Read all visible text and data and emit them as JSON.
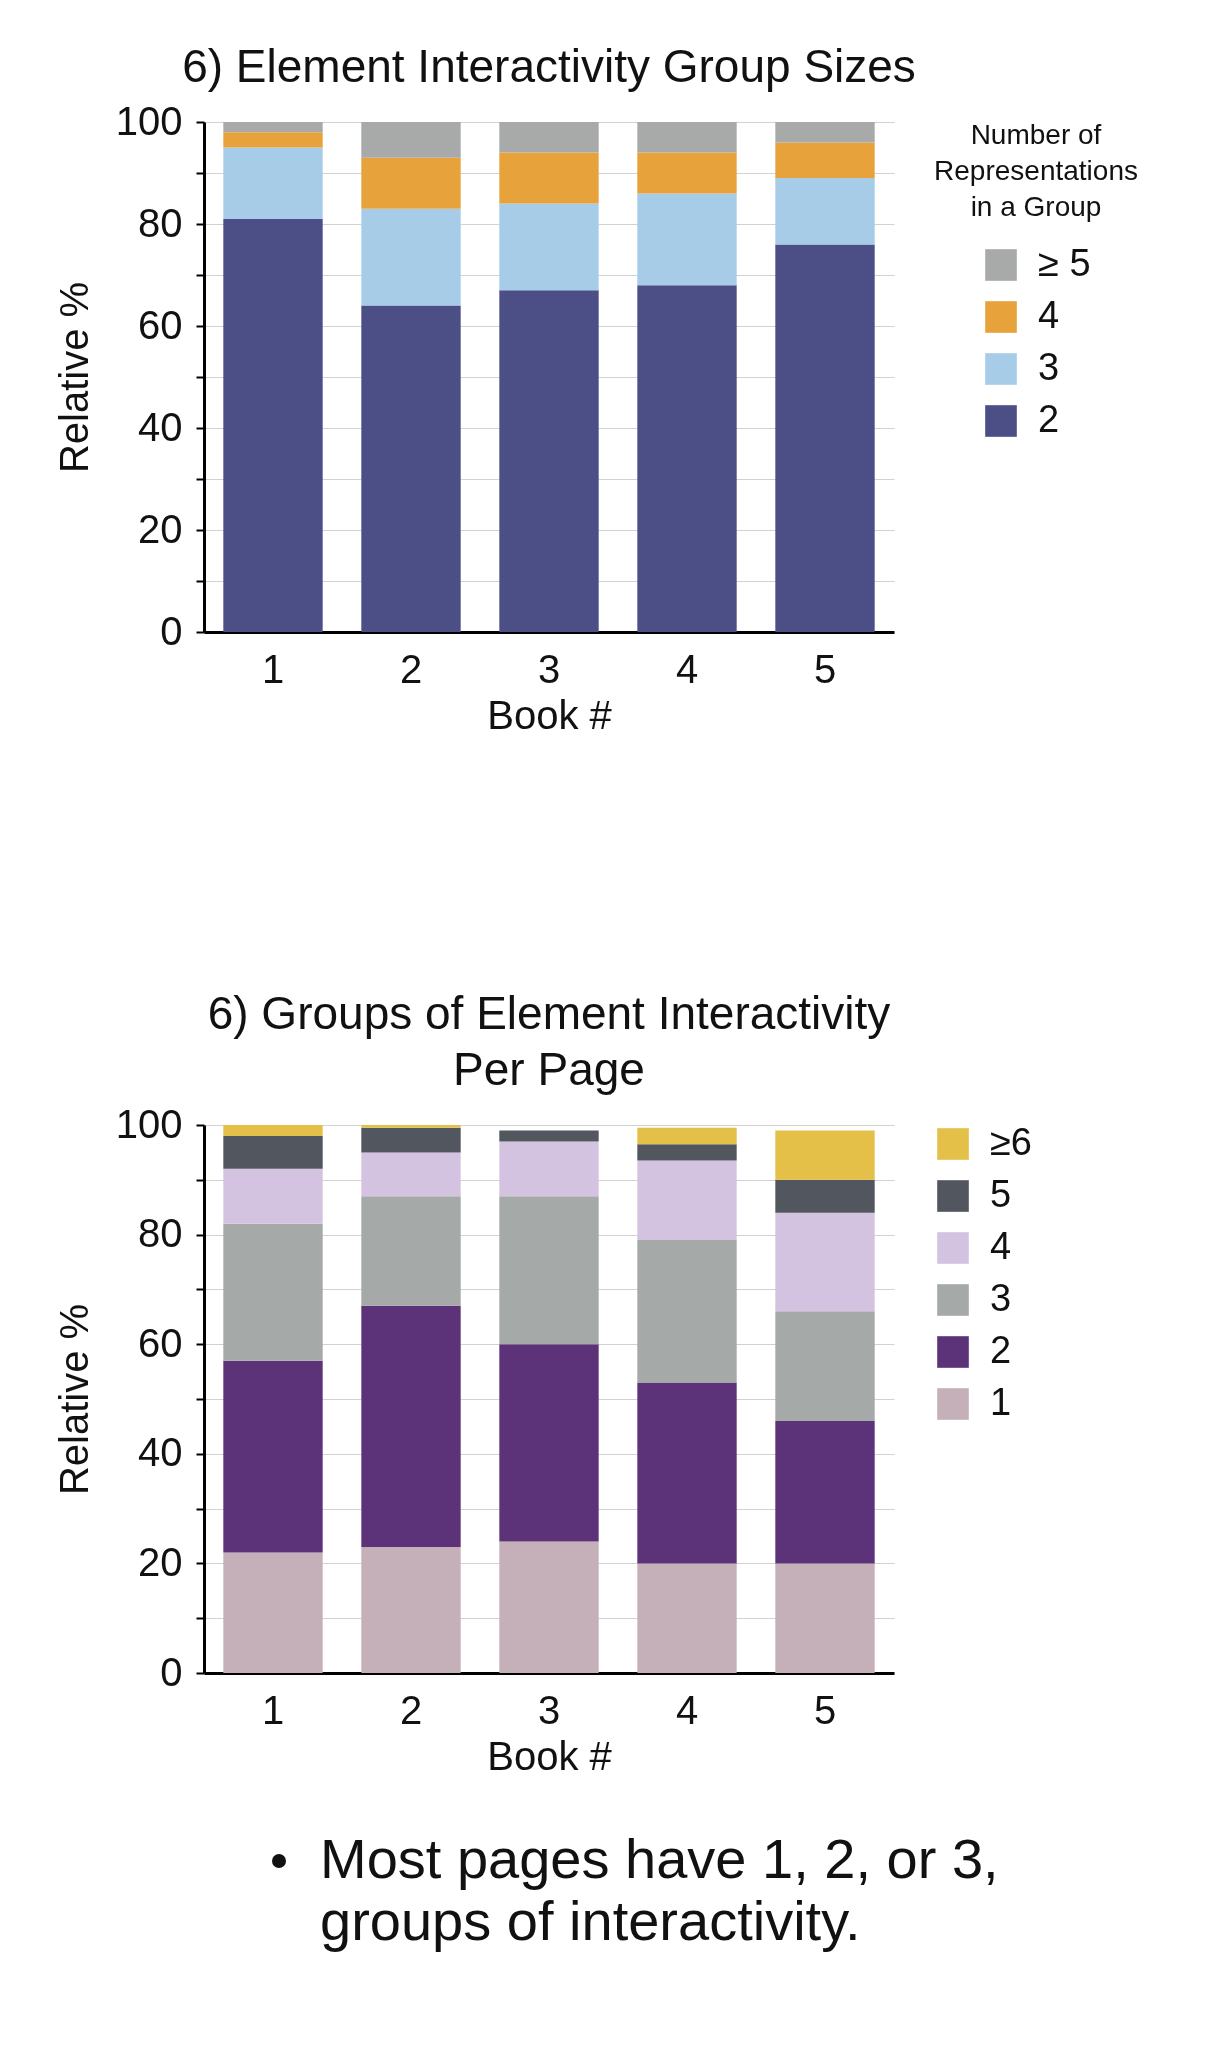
{
  "chart_data": [
    {
      "type": "bar",
      "title": "6)    Element Interactivity Group Sizes",
      "xlabel": "Book #",
      "ylabel": "Relative %",
      "legend_title": "Number of Representations in a Group",
      "categories": [
        "1",
        "2",
        "3",
        "4",
        "5"
      ],
      "stacked": true,
      "series": [
        {
          "name": "2",
          "color": "#4b4f85",
          "values": [
            81,
            64,
            67,
            68,
            76
          ]
        },
        {
          "name": "3",
          "color": "#a6cce8",
          "values": [
            14,
            19,
            17,
            18,
            13
          ]
        },
        {
          "name": "4",
          "color": "#e8a23c",
          "values": [
            3,
            10,
            10,
            8,
            7
          ]
        },
        {
          "name": "≥ 5",
          "color": "#a7aaa9",
          "values": [
            2,
            7,
            6,
            6,
            4
          ]
        }
      ],
      "ylim": [
        0,
        100
      ],
      "yticks": [
        0,
        {
          "value": 10,
          "label": null
        },
        20,
        {
          "value": 30,
          "label": null
        },
        40,
        {
          "value": 50,
          "label": null
        },
        60,
        {
          "value": 70,
          "label": null
        },
        80,
        {
          "value": 90,
          "label": null
        },
        100
      ],
      "grid": "y",
      "legend": "right"
    },
    {
      "type": "bar",
      "title": "6)    Groups of Element Interactivity Per Page",
      "xlabel": "Book #",
      "ylabel": "Relative %",
      "categories": [
        "1",
        "2",
        "3",
        "4",
        "5"
      ],
      "stacked": true,
      "series": [
        {
          "name": "1",
          "color": "#c5b0ba",
          "values": [
            22,
            23,
            24,
            20,
            20
          ]
        },
        {
          "name": "2",
          "color": "#5c3278",
          "values": [
            35,
            44,
            36,
            33,
            26
          ]
        },
        {
          "name": "3",
          "color": "#a5a9a8",
          "values": [
            25,
            20,
            27,
            26,
            20
          ]
        },
        {
          "name": "4",
          "color": "#d3c3e1",
          "values": [
            10,
            8,
            10,
            14.5,
            18
          ]
        },
        {
          "name": "5",
          "color": "#52565e",
          "values": [
            6,
            4.5,
            2,
            3,
            6
          ]
        },
        {
          "name": "≥6",
          "color": "#e4c048",
          "values": [
            2,
            0.5,
            0,
            3,
            9
          ]
        }
      ],
      "ylim": [
        0,
        100
      ],
      "yticks": [
        0,
        {
          "value": 10,
          "label": null
        },
        20,
        {
          "value": 30,
          "label": null
        },
        40,
        {
          "value": 50,
          "label": null
        },
        60,
        {
          "value": 70,
          "label": null
        },
        80,
        {
          "value": 90,
          "label": null
        },
        100
      ],
      "grid": "y",
      "legend": "right",
      "annotations": [
        "Most pages have 1, 2, or 3, groups of interactivity."
      ]
    }
  ]
}
